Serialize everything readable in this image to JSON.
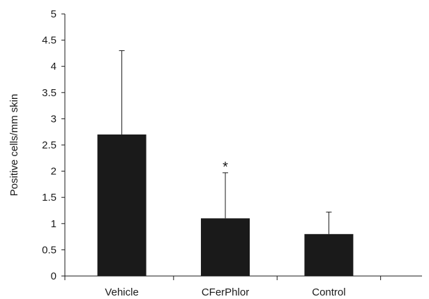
{
  "chart_data": {
    "type": "bar",
    "title": "",
    "xlabel": "",
    "ylabel": "Positive cells/mm skin",
    "categories": [
      "Vehicle",
      "CFerPhlor",
      "Control"
    ],
    "values": [
      2.7,
      1.1,
      0.8
    ],
    "error_upper": [
      4.3,
      1.97,
      1.22
    ],
    "ylim": [
      0,
      5
    ],
    "yticks": [
      "0",
      "0.5",
      "1",
      "1.5",
      "2",
      "2.5",
      "3",
      "3.5",
      "4",
      "4.5",
      "5"
    ],
    "annotations": [
      {
        "category": "CFerPhlor",
        "text": "*"
      }
    ],
    "grid": false,
    "legend": "none",
    "bar_color": "#1a1a1a"
  }
}
